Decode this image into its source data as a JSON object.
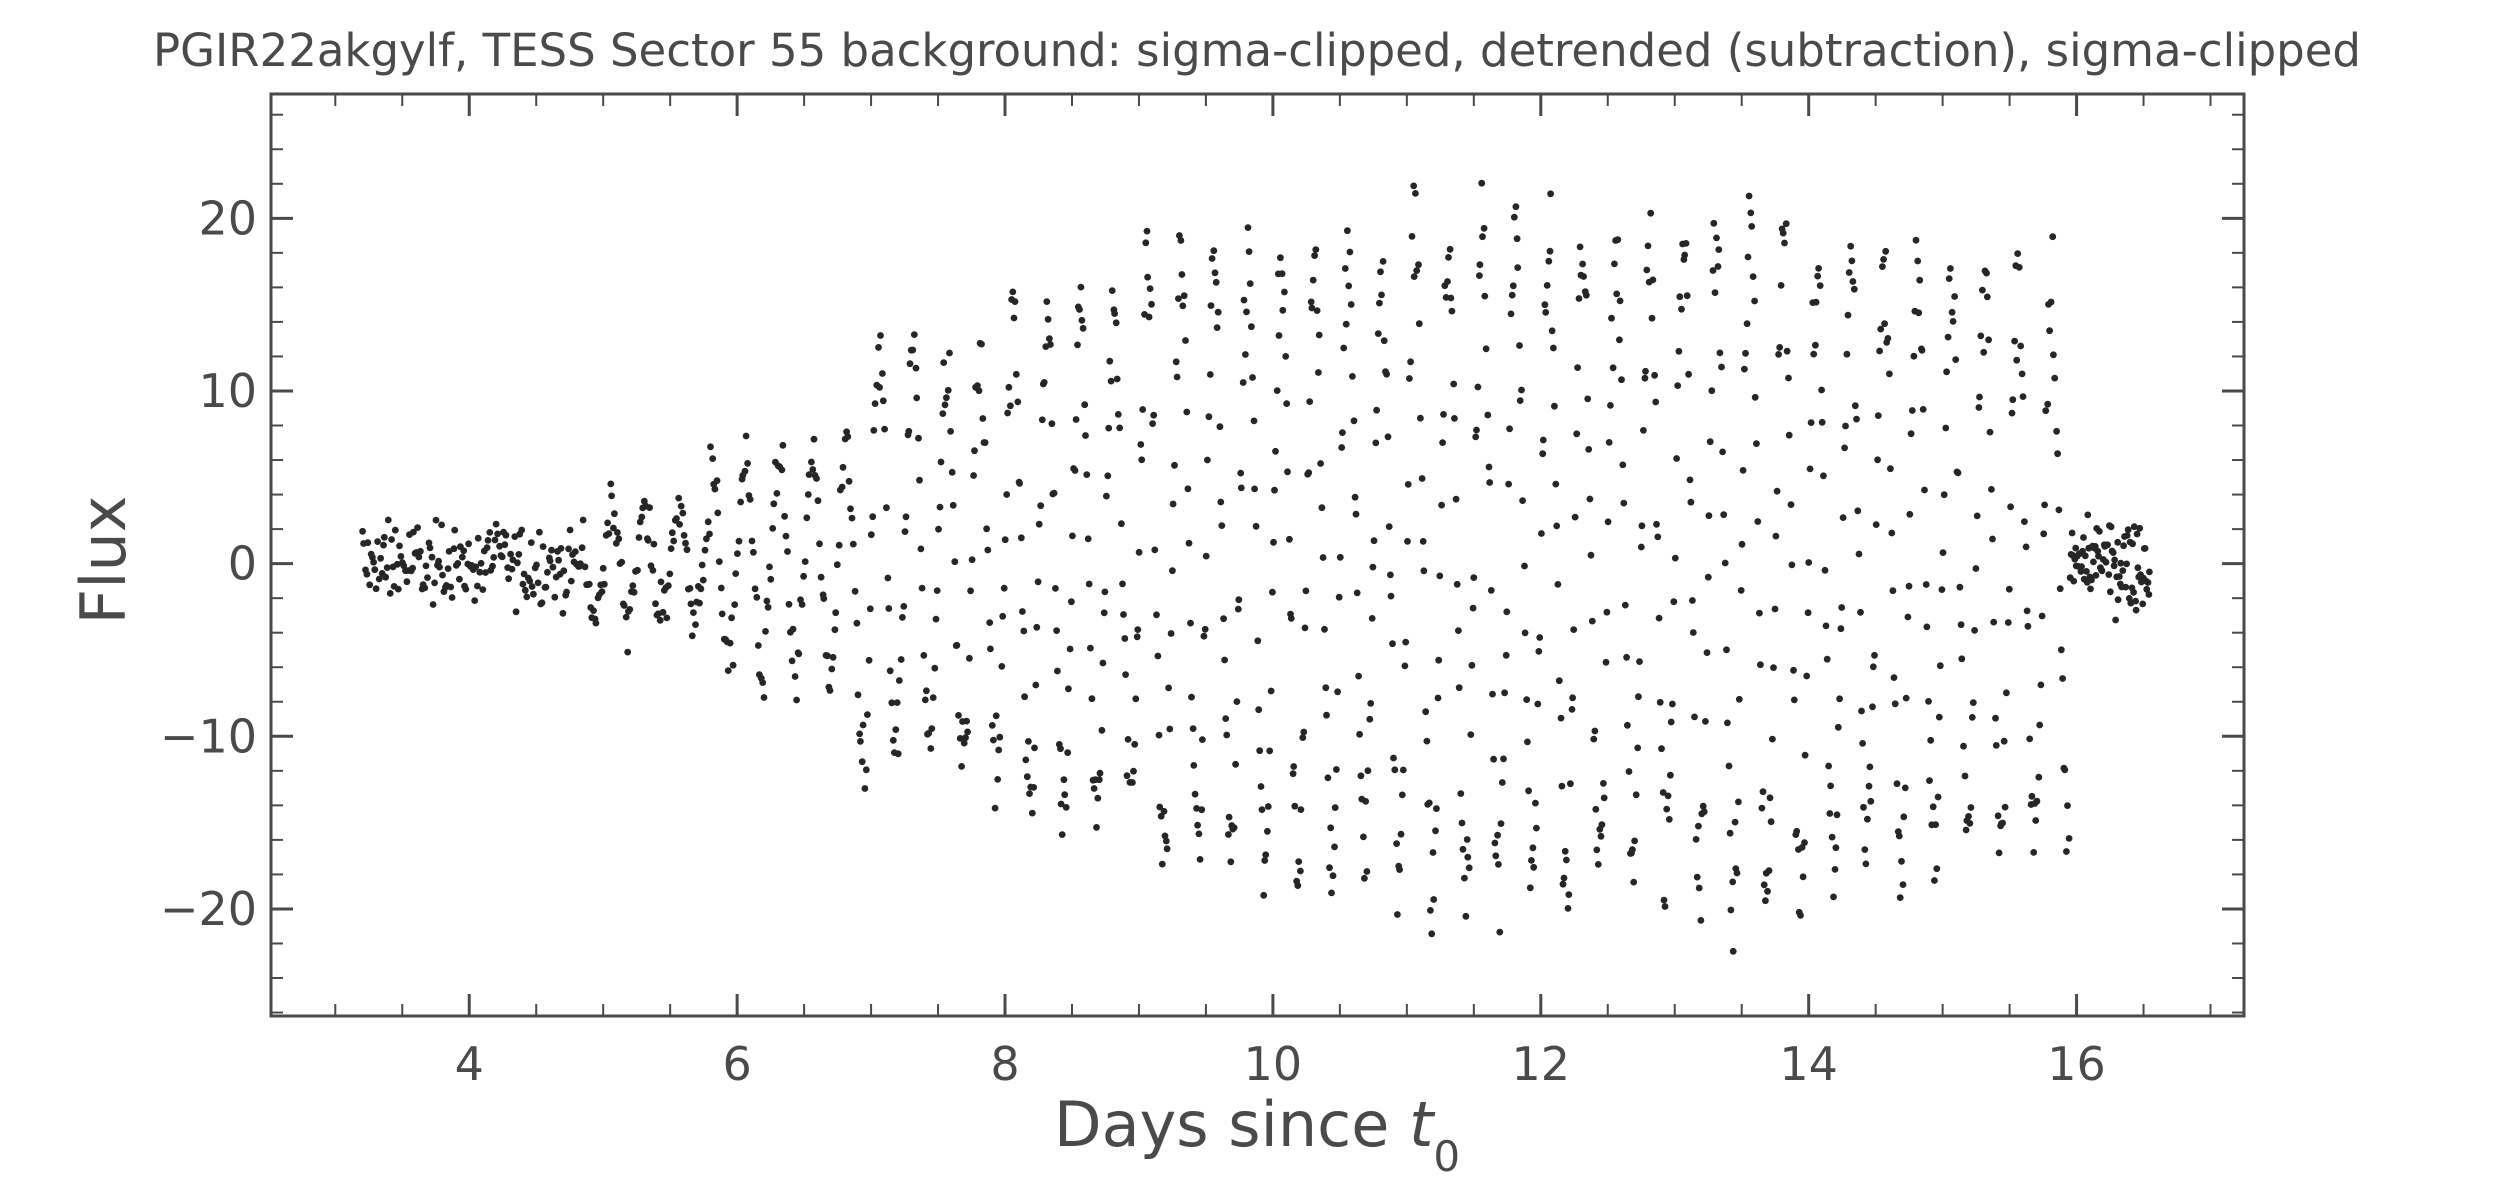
{
  "chart_data": {
    "type": "scatter",
    "title": "PGIR22akgylf, TESS Sector 55 background: sigma-clipped, detrended (subtraction), sigma-clipped",
    "xlabel_main": "Days since ",
    "xlabel_var": "t",
    "xlabel_sub": "0",
    "ylabel": "Flux",
    "xlim": [
      2.52,
      17.25
    ],
    "ylim": [
      -26.2,
      27.2
    ],
    "x_ticks": [
      4,
      6,
      8,
      10,
      12,
      14,
      16
    ],
    "x_tick_labels": [
      "4",
      "6",
      "8",
      "10",
      "12",
      "14",
      "16"
    ],
    "y_ticks": [
      -20,
      -10,
      0,
      10,
      20
    ],
    "y_tick_labels": [
      "−20",
      "−10",
      "0",
      "10",
      "20"
    ],
    "x_minor_step": 0.5,
    "y_minor_step": 2,
    "grid": false,
    "marker_color": "#262626",
    "series": [
      {
        "x_start": 3.2,
        "x_end": 16.55,
        "segments": [
          {
            "x0": 3.2,
            "x1": 4.85,
            "n": 160,
            "amp": 0.0,
            "spread": 1.1
          },
          {
            "x0": 4.85,
            "x1": 5.8,
            "n": 90,
            "amp": 3.5,
            "spread": 0.8
          },
          {
            "x0": 5.8,
            "x1": 6.9,
            "n": 100,
            "amp": 7.0,
            "spread": 0.8
          },
          {
            "x0": 6.9,
            "x1": 8.0,
            "n": 110,
            "amp": 13.0,
            "spread": 0.9
          },
          {
            "x0": 8.0,
            "x1": 9.0,
            "n": 110,
            "amp": 15.5,
            "spread": 0.9
          },
          {
            "x0": 9.0,
            "x1": 10.0,
            "n": 110,
            "amp": 19.0,
            "spread": 0.9
          },
          {
            "x0": 10.0,
            "x1": 11.0,
            "n": 110,
            "amp": 19.5,
            "spread": 0.9
          },
          {
            "x0": 11.0,
            "x1": 12.0,
            "n": 110,
            "amp": 21.0,
            "spread": 0.9
          },
          {
            "x0": 12.0,
            "x1": 13.0,
            "n": 110,
            "amp": 20.0,
            "spread": 0.9
          },
          {
            "x0": 13.0,
            "x1": 14.0,
            "n": 110,
            "amp": 21.5,
            "spread": 0.9
          },
          {
            "x0": 14.0,
            "x1": 15.0,
            "n": 110,
            "amp": 19.0,
            "spread": 0.9
          },
          {
            "x0": 15.0,
            "x1": 15.95,
            "n": 100,
            "amp": 17.0,
            "spread": 0.9
          },
          {
            "x0": 15.95,
            "x1": 16.55,
            "n": 90,
            "amp": 0.0,
            "spread": 1.2
          }
        ],
        "period_days": 0.25,
        "y_min": -24,
        "y_max": 24.5
      }
    ]
  }
}
